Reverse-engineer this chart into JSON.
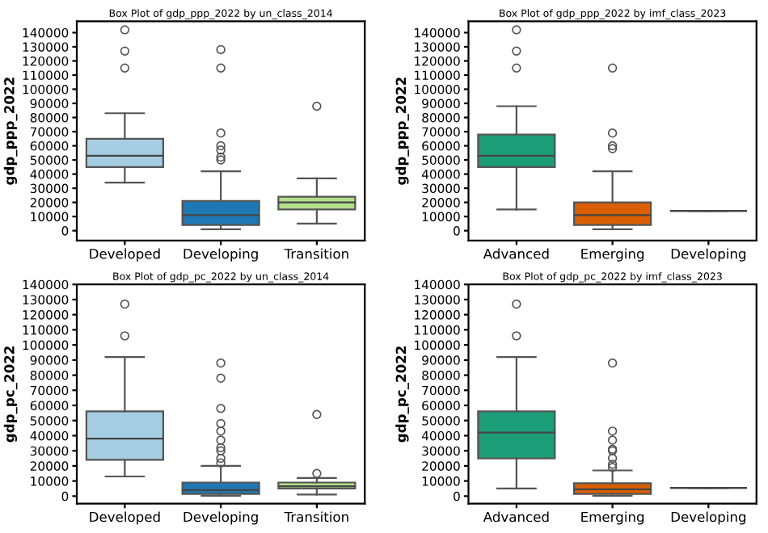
{
  "chart_data": [
    {
      "type": "box",
      "title": "Box Plot of gdp_ppp_2022 by un_class_2014",
      "ylabel": "gdp_ppp_2022",
      "categories": [
        "Developed",
        "Developing",
        "Transition"
      ],
      "colors": [
        "#a6cee3",
        "#1f78b4",
        "#b2df8a"
      ],
      "ylim": [
        -7000,
        148000
      ],
      "yticks": [
        0,
        10000,
        20000,
        30000,
        40000,
        50000,
        60000,
        70000,
        80000,
        90000,
        100000,
        110000,
        120000,
        130000,
        140000
      ],
      "boxes": [
        {
          "low": 34000,
          "q1": 45000,
          "median": 53000,
          "q3": 65000,
          "high": 83000,
          "outliers": [
            115000,
            127000,
            142000
          ]
        },
        {
          "low": 1000,
          "q1": 4000,
          "median": 11000,
          "q3": 21000,
          "high": 42000,
          "outliers": [
            50000,
            52000,
            57000,
            60000,
            69000,
            115000,
            128000
          ]
        },
        {
          "low": 5000,
          "q1": 15000,
          "median": 20000,
          "q3": 24000,
          "high": 37000,
          "outliers": [
            88000
          ]
        }
      ]
    },
    {
      "type": "box",
      "title": "Box Plot of gdp_ppp_2022 by imf_class_2023",
      "ylabel": "gdp_ppp_2022",
      "categories": [
        "Advanced",
        "Emerging",
        "Developing"
      ],
      "colors": [
        "#1b9e77",
        "#d95f02",
        "#555555"
      ],
      "ylim": [
        -7000,
        148000
      ],
      "yticks": [
        0,
        10000,
        20000,
        30000,
        40000,
        50000,
        60000,
        70000,
        80000,
        90000,
        100000,
        110000,
        120000,
        130000,
        140000
      ],
      "boxes": [
        {
          "low": 15000,
          "q1": 45000,
          "median": 53000,
          "q3": 68000,
          "high": 88000,
          "outliers": [
            115000,
            127000,
            142000
          ]
        },
        {
          "low": 1000,
          "q1": 4000,
          "median": 11000,
          "q3": 20000,
          "high": 42000,
          "outliers": [
            58000,
            60000,
            69000,
            115000
          ]
        },
        {
          "low": 14000,
          "q1": 14000,
          "median": 14000,
          "q3": 14000,
          "high": 14000
        }
      ]
    },
    {
      "type": "box",
      "title": "Box Plot of gdp_pc_2022 by un_class_2014",
      "ylabel": "gdp_pc_2022",
      "categories": [
        "Developed",
        "Developing",
        "Transition"
      ],
      "colors": [
        "#a6cee3",
        "#1f78b4",
        "#b2df8a"
      ],
      "ylim": [
        -5000,
        140000
      ],
      "yticks": [
        0,
        10000,
        20000,
        30000,
        40000,
        50000,
        60000,
        70000,
        80000,
        90000,
        100000,
        110000,
        120000,
        130000,
        140000
      ],
      "boxes": [
        {
          "low": 13000,
          "q1": 24000,
          "median": 38000,
          "q3": 56000,
          "high": 92000,
          "outliers": [
            106000,
            127000
          ]
        },
        {
          "low": 300,
          "q1": 1500,
          "median": 4000,
          "q3": 9000,
          "high": 20000,
          "outliers": [
            22000,
            25000,
            30000,
            32000,
            37000,
            43000,
            48000,
            58000,
            78000,
            88000
          ]
        },
        {
          "low": 1000,
          "q1": 5000,
          "median": 6500,
          "q3": 9000,
          "high": 12000,
          "outliers": [
            15000,
            54000
          ]
        }
      ]
    },
    {
      "type": "box",
      "title": "Box Plot of gdp_pc_2022 by imf_class_2023",
      "ylabel": "gdp_pc_2022",
      "categories": [
        "Advanced",
        "Emerging",
        "Developing"
      ],
      "colors": [
        "#1b9e77",
        "#d95f02",
        "#555555"
      ],
      "ylim": [
        -5000,
        140000
      ],
      "yticks": [
        0,
        10000,
        20000,
        30000,
        40000,
        50000,
        60000,
        70000,
        80000,
        90000,
        100000,
        110000,
        120000,
        130000,
        140000
      ],
      "boxes": [
        {
          "low": 5000,
          "q1": 25000,
          "median": 42000,
          "q3": 56000,
          "high": 92000,
          "outliers": [
            106000,
            127000
          ]
        },
        {
          "low": 300,
          "q1": 1500,
          "median": 4500,
          "q3": 8500,
          "high": 17000,
          "outliers": [
            19000,
            21000,
            25000,
            30000,
            31000,
            37000,
            43000,
            88000
          ]
        },
        {
          "low": 5500,
          "q1": 5500,
          "median": 5500,
          "q3": 5500,
          "high": 5500
        }
      ]
    }
  ]
}
